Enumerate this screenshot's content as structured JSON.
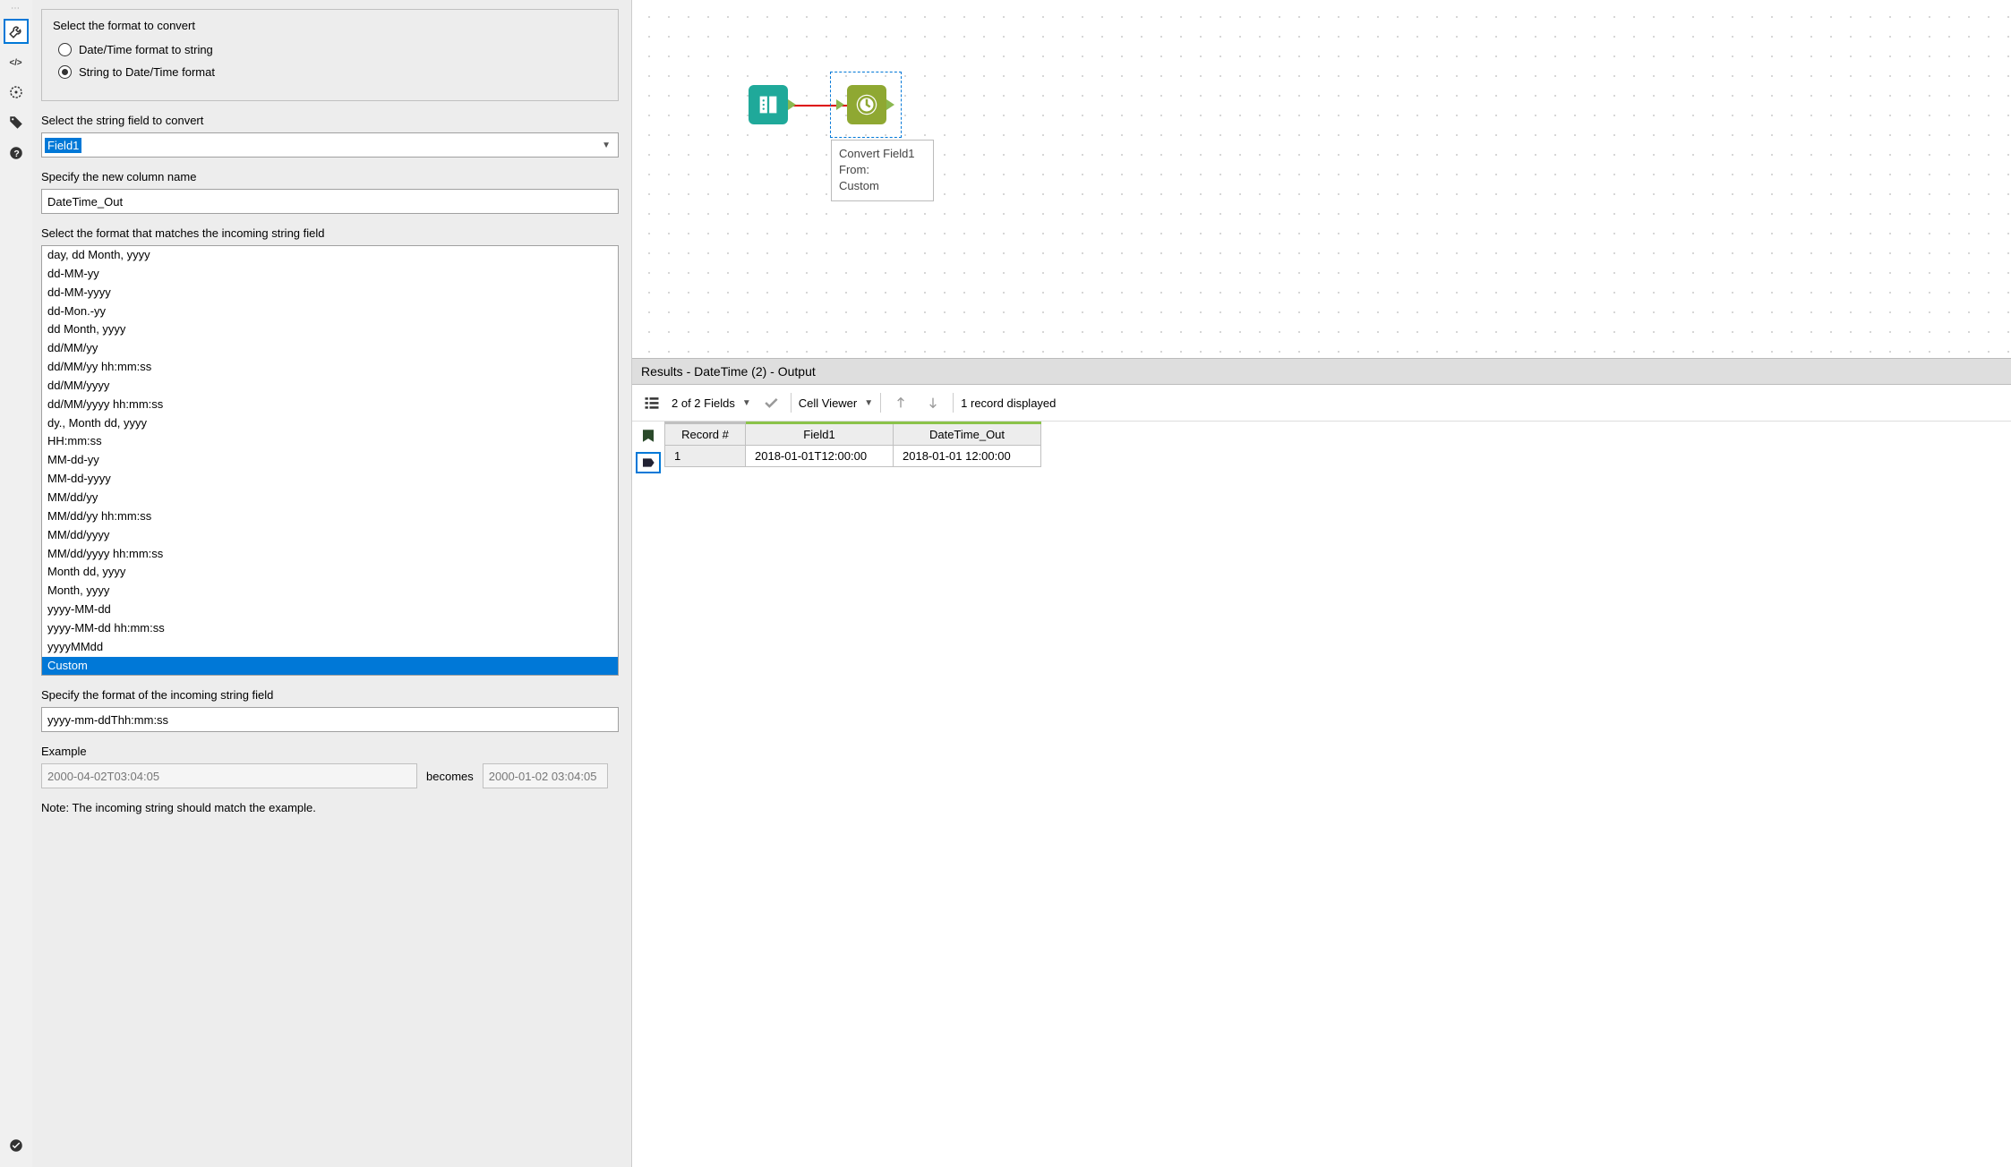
{
  "config": {
    "group_title": "Select the format to convert",
    "radio1": "Date/Time format to string",
    "radio2": "String to Date/Time format",
    "radio_selected": 2,
    "field_label": "Select the string field to convert",
    "field_value": "Field1",
    "newcol_label": "Specify the new column name",
    "newcol_value": "DateTime_Out",
    "format_label": "Select the format that matches the incoming string field",
    "formats": [
      "day, dd Month, yyyy",
      "dd-MM-yy",
      "dd-MM-yyyy",
      "dd-Mon.-yy",
      "dd Month, yyyy",
      "dd/MM/yy",
      "dd/MM/yy hh:mm:ss",
      "dd/MM/yyyy",
      "dd/MM/yyyy hh:mm:ss",
      "dy., Month dd, yyyy",
      "HH:mm:ss",
      "MM-dd-yy",
      "MM-dd-yyyy",
      "MM/dd/yy",
      "MM/dd/yy hh:mm:ss",
      "MM/dd/yyyy",
      "MM/dd/yyyy hh:mm:ss",
      "Month dd, yyyy",
      "Month, yyyy",
      "yyyy-MM-dd",
      "yyyy-MM-dd hh:mm:ss",
      "yyyyMMdd",
      "Custom"
    ],
    "format_selected_index": 22,
    "custom_label": "Specify the format of the incoming string field",
    "custom_value": "yyyy-mm-ddThh:mm:ss",
    "example_label": "Example",
    "example_in": "2000-04-02T03:04:05",
    "becomes": "becomes",
    "example_out": "2000-01-02 03:04:05",
    "note": "Note: The incoming string should match the example."
  },
  "canvas": {
    "node_label_line1": "Convert Field1",
    "node_label_line2": "From:",
    "node_label_line3": "Custom"
  },
  "results": {
    "header": "Results - DateTime (2) - Output",
    "fields_text": "2 of 2 Fields",
    "cell_viewer": "Cell Viewer",
    "records_text": "1 record displayed",
    "columns": [
      "Record #",
      "Field1",
      "DateTime_Out"
    ],
    "rows": [
      [
        "1",
        "2018-01-01T12:00:00",
        "2018-01-01 12:00:00"
      ]
    ]
  },
  "colors": {
    "accent": "#0078d7",
    "input_tool": "#1fa99a",
    "datetime_tool": "#8fa832",
    "port_green": "#8bb84f",
    "header_green": "#8bc34a"
  }
}
